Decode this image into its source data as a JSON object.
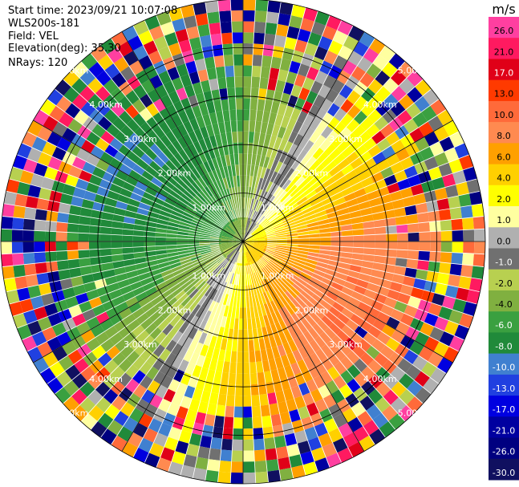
{
  "header": {
    "start_time": "Start time: 2023/09/21 10:07:08",
    "instrument": "WLS200s-181",
    "field": "Field: VEL",
    "elevation": "Elevation(deg): 35.30",
    "nrays": "NRays: 120"
  },
  "chart_data": {
    "type": "ppi",
    "field": "VEL",
    "unit_label": "m/s",
    "range_rings_km": [
      1.0,
      2.0,
      3.0,
      4.0,
      5.0
    ],
    "ring_labels": [
      "1.00km",
      "2.00km",
      "3.00km",
      "4.00km",
      "5.00km"
    ],
    "max_range_km": 5.0,
    "n_rays": 120,
    "n_gates": 22,
    "velocity_pattern": {
      "approaching_max_ms": -8.0,
      "receding_max_ms": 10.0,
      "approaching_azimuth_deg": 300,
      "noise_start_km": 3.0
    },
    "colorbar": {
      "ticks": [
        "26.0",
        "21.0",
        "17.0",
        "13.0",
        "10.0",
        "8.0",
        "6.0",
        "4.0",
        "2.0",
        "1.0",
        "0.0",
        "-1.0",
        "-2.0",
        "-4.0",
        "-6.0",
        "-8.0",
        "-10.0",
        "-13.0",
        "-17.0",
        "-21.0",
        "-26.0",
        "-30.0"
      ],
      "bounds": [
        30,
        26,
        21,
        17,
        13,
        10,
        8,
        6,
        4,
        2,
        1,
        0,
        -1,
        -2,
        -4,
        -6,
        -8,
        -10,
        -13,
        -17,
        -21,
        -26,
        -30
      ],
      "colors": [
        "#ff3fa0",
        "#ff1a60",
        "#e00018",
        "#ff3a00",
        "#ff6a3a",
        "#ff8a50",
        "#ffa000",
        "#ffd000",
        "#ffff00",
        "#ffffa0",
        "#b0b0b0",
        "#707070",
        "#b8d050",
        "#80b040",
        "#3aa040",
        "#208a3a",
        "#4080d0",
        "#2040e0",
        "#0000e0",
        "#0000a0",
        "#000080",
        "#101060"
      ]
    }
  }
}
